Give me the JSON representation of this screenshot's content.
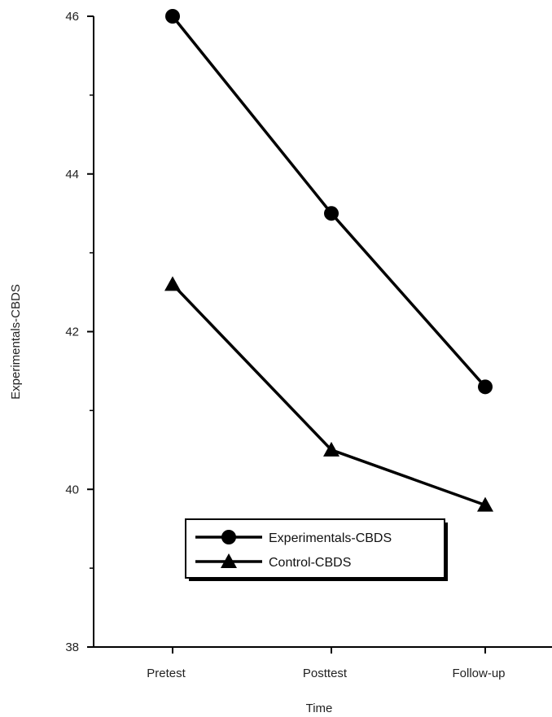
{
  "chart_data": {
    "type": "line",
    "categories": [
      "Pretest",
      "Posttest",
      "Follow-up"
    ],
    "xlabel": "Time",
    "ylabel": "Experimentals-CBDS",
    "ylim": [
      38,
      46
    ],
    "yticks": [
      38,
      40,
      42,
      44,
      46
    ],
    "grid": false,
    "legend_position": "center",
    "series": [
      {
        "name": "Experimentals-CBDS",
        "marker": "circle",
        "values": [
          46.0,
          43.5,
          41.3
        ]
      },
      {
        "name": "Control-CBDS",
        "marker": "triangle",
        "values": [
          42.6,
          40.5,
          39.8
        ]
      }
    ],
    "line_color": "#000000"
  }
}
